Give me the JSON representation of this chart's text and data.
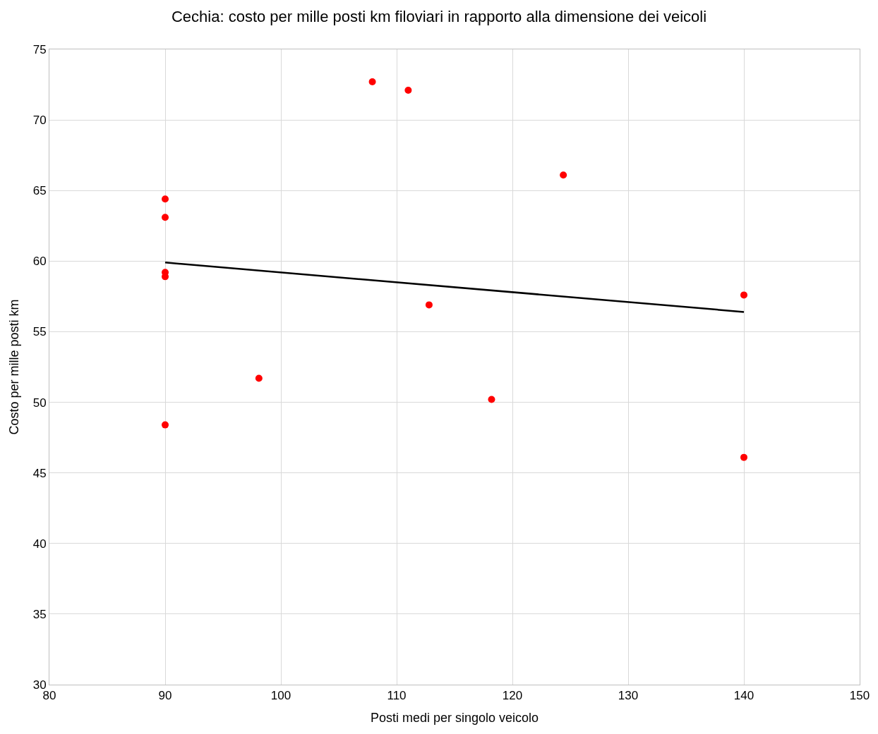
{
  "chart_data": {
    "type": "scatter",
    "title": "Cechia: costo per mille posti km filoviari in rapporto alla dimensione dei veicoli",
    "xlabel": "Posti medi per singolo veicolo",
    "ylabel": "Costo per mille posti km",
    "series": [
      {
        "color": "#ff0000",
        "marker": "circle",
        "x": [
          90,
          90,
          90,
          90,
          90,
          98.1,
          107.9,
          111.0,
          112.8,
          118.2,
          124.4,
          140,
          140
        ],
        "values": [
          64.4,
          63.1,
          59.2,
          58.9,
          48.4,
          51.7,
          72.7,
          72.1,
          56.9,
          50.2,
          66.1,
          57.6,
          46.1
        ]
      },
      {
        "type": "line",
        "color": "#000000",
        "marker": "none",
        "line_style": "solid",
        "x": [
          90,
          140
        ],
        "values": [
          59.9,
          56.4
        ]
      }
    ],
    "xlim": [
      80,
      150
    ],
    "xticks": [
      80,
      90,
      100,
      110,
      120,
      130,
      140,
      150
    ],
    "ylim": [
      30,
      75
    ],
    "yticks": [
      30,
      35,
      40,
      45,
      50,
      55,
      60,
      65,
      70,
      75
    ],
    "grid": true
  }
}
